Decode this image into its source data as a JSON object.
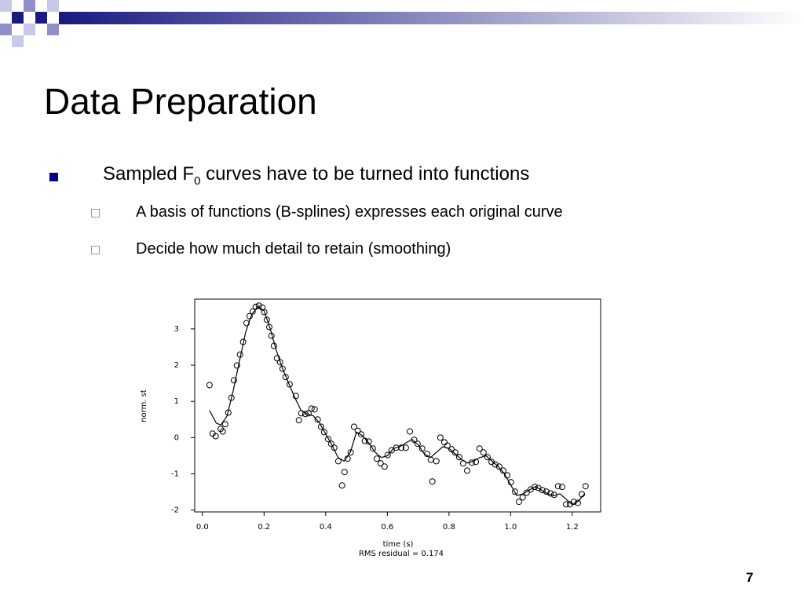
{
  "slide": {
    "title": "Data Preparation",
    "bullet": {
      "before": "Sampled F",
      "subscript": "0",
      "after": " curves have to be turned into functions"
    },
    "sub_bullets": [
      "A basis of functions (B-splines) expresses each original curve",
      "Decide how much detail to retain (smoothing)"
    ],
    "page_number": "7"
  },
  "chart_data": {
    "type": "scatter",
    "xlabel": "time (s)",
    "ylabel": "norm. st",
    "annotation": "RMS residual = 0.174",
    "xlim": [
      -0.025,
      1.292
    ],
    "ylim": [
      -2.05,
      3.82
    ],
    "xticks": [
      {
        "value": 0,
        "label": "0.0"
      },
      0.2,
      0.4,
      0.6,
      0.8,
      {
        "value": 1,
        "label": "1.0"
      },
      1.2
    ],
    "yticks": [
      -2,
      -1,
      0,
      1,
      2,
      3
    ],
    "series": [
      {
        "type": "scatter",
        "color": "#000000",
        "x": [
          0.023,
          0.033,
          0.043,
          0.059,
          0.066,
          0.074,
          0.084,
          0.094,
          0.102,
          0.112,
          0.122,
          0.132,
          0.143,
          0.153,
          0.163,
          0.173,
          0.183,
          0.194,
          0.201,
          0.209,
          0.217,
          0.224,
          0.232,
          0.242,
          0.252,
          0.26,
          0.27,
          0.283,
          0.303,
          0.313,
          0.321,
          0.334,
          0.344,
          0.354,
          0.364,
          0.374,
          0.385,
          0.395,
          0.408,
          0.418,
          0.428,
          0.441,
          0.453,
          0.461,
          0.471,
          0.481,
          0.492,
          0.504,
          0.515,
          0.527,
          0.54,
          0.553,
          0.566,
          0.578,
          0.591,
          0.601,
          0.614,
          0.629,
          0.645,
          0.66,
          0.673,
          0.687,
          0.698,
          0.713,
          0.729,
          0.741,
          0.746,
          0.759,
          0.772,
          0.785,
          0.795,
          0.808,
          0.82,
          0.833,
          0.846,
          0.859,
          0.874,
          0.887,
          0.899,
          0.912,
          0.925,
          0.938,
          0.95,
          0.963,
          0.976,
          0.989,
          1.001,
          1.014,
          1.027,
          1.039,
          1.052,
          1.065,
          1.078,
          1.09,
          1.103,
          1.116,
          1.129,
          1.141,
          1.154,
          1.167,
          1.18,
          1.192,
          1.205,
          1.218,
          1.231,
          1.243
        ],
        "values": [
          1.45,
          0.11,
          0.04,
          0.24,
          0.17,
          0.37,
          0.69,
          1.1,
          1.58,
          1.99,
          2.29,
          2.64,
          3.16,
          3.35,
          3.48,
          3.61,
          3.64,
          3.59,
          3.46,
          3.25,
          3.05,
          2.81,
          2.53,
          2.19,
          2.08,
          1.9,
          1.67,
          1.47,
          1.15,
          0.48,
          0.67,
          0.65,
          0.67,
          0.8,
          0.78,
          0.5,
          0.3,
          0.15,
          -0.04,
          -0.17,
          -0.28,
          -0.65,
          -1.32,
          -0.95,
          -0.58,
          -0.41,
          0.3,
          0.19,
          0.09,
          -0.09,
          -0.11,
          -0.3,
          -0.58,
          -0.71,
          -0.8,
          -0.48,
          -0.35,
          -0.28,
          -0.28,
          -0.28,
          0.17,
          -0.06,
          -0.17,
          -0.3,
          -0.45,
          -0.61,
          -1.21,
          -0.65,
          0.0,
          -0.13,
          -0.22,
          -0.32,
          -0.41,
          -0.54,
          -0.71,
          -0.91,
          -0.69,
          -0.67,
          -0.3,
          -0.41,
          -0.54,
          -0.67,
          -0.74,
          -0.8,
          -0.91,
          -1.04,
          -1.23,
          -1.49,
          -1.77,
          -1.65,
          -1.52,
          -1.43,
          -1.36,
          -1.39,
          -1.45,
          -1.49,
          -1.54,
          -1.58,
          -1.34,
          -1.36,
          -1.84,
          -1.84,
          -1.77,
          -1.8,
          -1.56,
          -1.34
        ]
      },
      {
        "type": "line",
        "color": "#000000",
        "x": [
          0.023,
          0.045,
          0.06,
          0.08,
          0.1,
          0.12,
          0.14,
          0.16,
          0.18,
          0.2,
          0.22,
          0.24,
          0.26,
          0.28,
          0.3,
          0.32,
          0.34,
          0.36,
          0.38,
          0.4,
          0.42,
          0.44,
          0.46,
          0.48,
          0.5,
          0.52,
          0.54,
          0.56,
          0.58,
          0.6,
          0.62,
          0.64,
          0.66,
          0.68,
          0.7,
          0.72,
          0.74,
          0.76,
          0.78,
          0.8,
          0.82,
          0.84,
          0.86,
          0.88,
          0.9,
          0.92,
          0.94,
          0.96,
          0.98,
          1.0,
          1.02,
          1.04,
          1.06,
          1.08,
          1.1,
          1.12,
          1.14,
          1.16,
          1.18,
          1.2,
          1.22,
          1.24
        ],
        "values": [
          0.75,
          0.4,
          0.35,
          0.6,
          1.3,
          2.1,
          2.9,
          3.4,
          3.62,
          3.5,
          3.0,
          2.4,
          1.9,
          1.5,
          1.1,
          0.75,
          0.65,
          0.6,
          0.4,
          0.1,
          -0.2,
          -0.55,
          -0.65,
          -0.4,
          0.15,
          0.05,
          -0.15,
          -0.4,
          -0.55,
          -0.5,
          -0.3,
          -0.25,
          -0.15,
          -0.05,
          -0.2,
          -0.45,
          -0.55,
          -0.4,
          -0.25,
          -0.3,
          -0.45,
          -0.6,
          -0.7,
          -0.65,
          -0.55,
          -0.5,
          -0.65,
          -0.8,
          -1.0,
          -1.3,
          -1.6,
          -1.55,
          -1.45,
          -1.35,
          -1.45,
          -1.55,
          -1.6,
          -1.55,
          -1.7,
          -1.85,
          -1.75,
          -1.55
        ]
      }
    ]
  }
}
